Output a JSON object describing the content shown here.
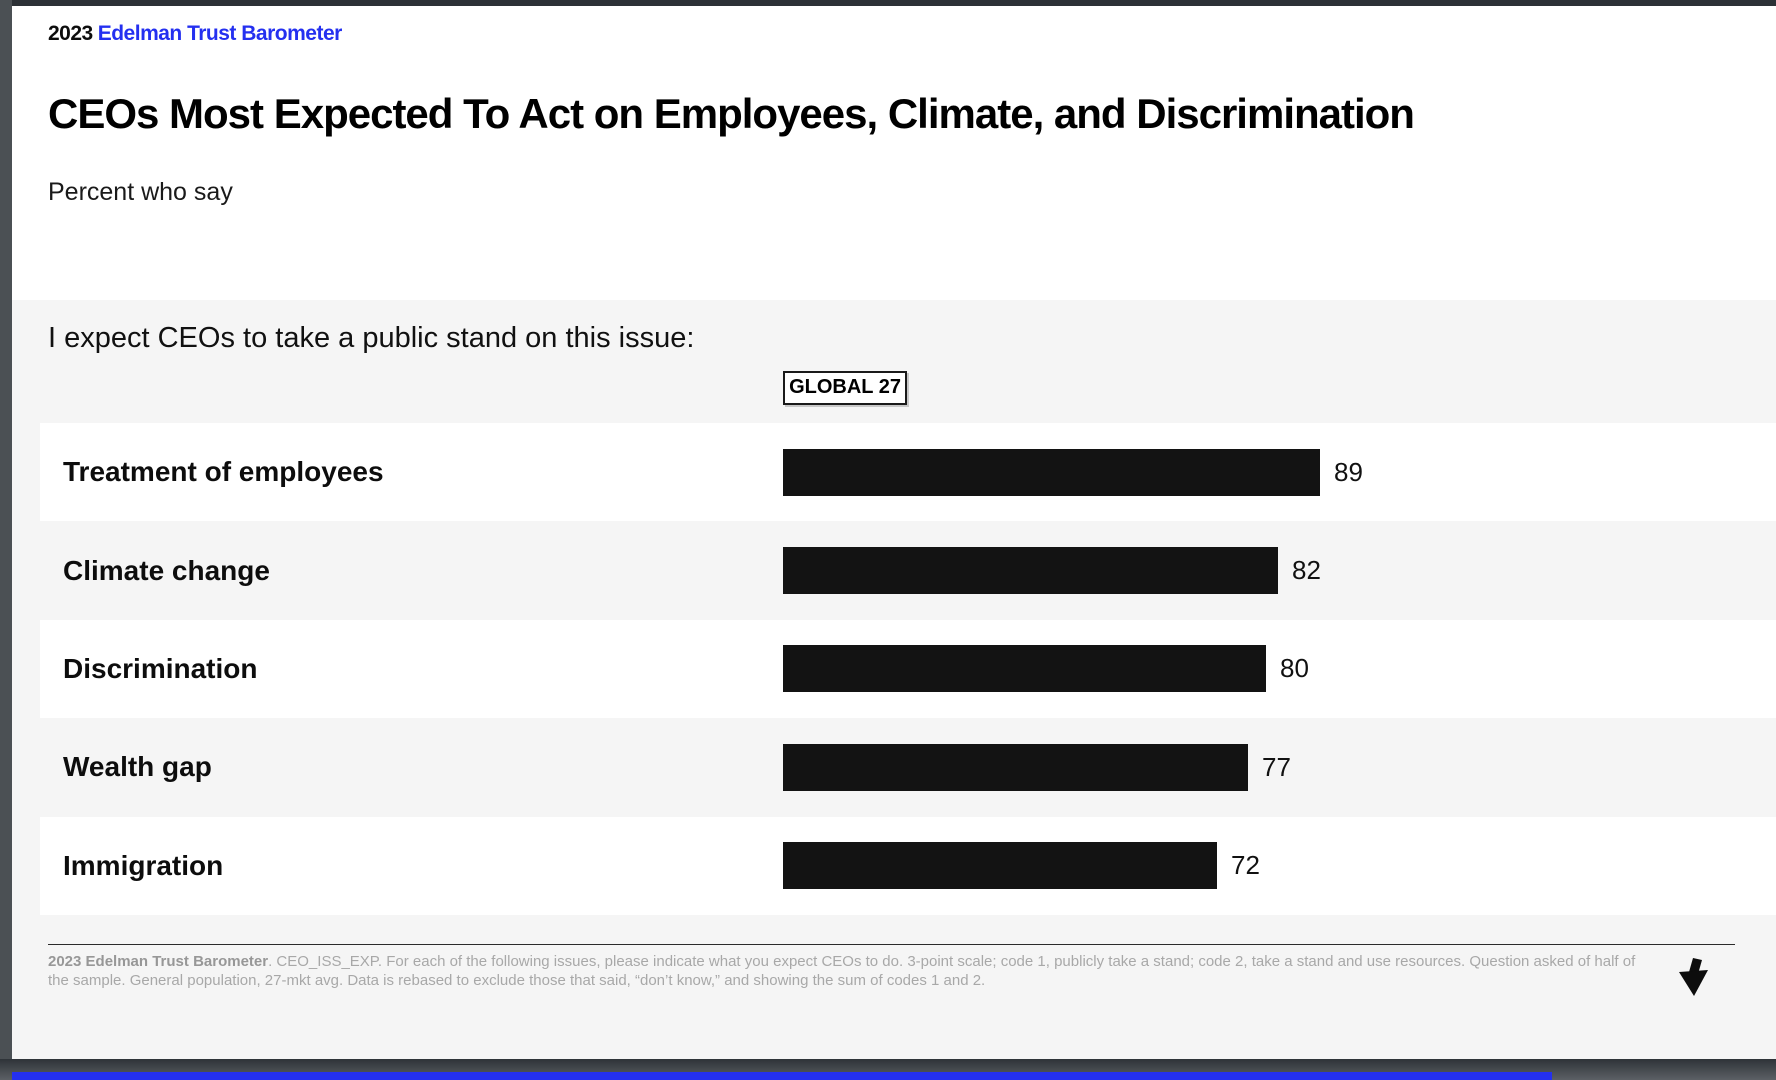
{
  "viewer": {
    "next_slide_strip_color": "#2430f0"
  },
  "header": {
    "logo_year": "2023",
    "logo_brand": "Edelman Trust Barometer",
    "logo_brand_color": "#2430f0",
    "title": "CEOs Most Expected To Act on Employees, Climate, and Discrimination",
    "subtitle": "Percent who say"
  },
  "chart_data": {
    "type": "bar",
    "orientation": "horizontal",
    "title": "I expect CEOs to take a public stand on this issue:",
    "column_header": "GLOBAL 27",
    "categories": [
      "Treatment of employees",
      "Climate change",
      "Discrimination",
      "Wealth gap",
      "Immigration"
    ],
    "values": [
      89,
      82,
      80,
      77,
      72
    ],
    "xlim": [
      0,
      100
    ],
    "bar_color": "#131313",
    "value_labels_shown": true,
    "grid": false,
    "legend": false
  },
  "footer": {
    "source_bold": "2023 Edelman Trust Barometer",
    "source_rest": ". CEO_ISS_EXP. For each of the following issues, please indicate what you expect CEOs to do. 3-point scale; code 1, publicly take a stand; code 2, take a stand and use resources. Question asked of half of the sample. General population, 27-mkt avg. Data is rebased to exclude those that said, “don’t know,” and showing the sum of codes 1 and 2.",
    "arrow_icon": "next-slide-arrow"
  }
}
